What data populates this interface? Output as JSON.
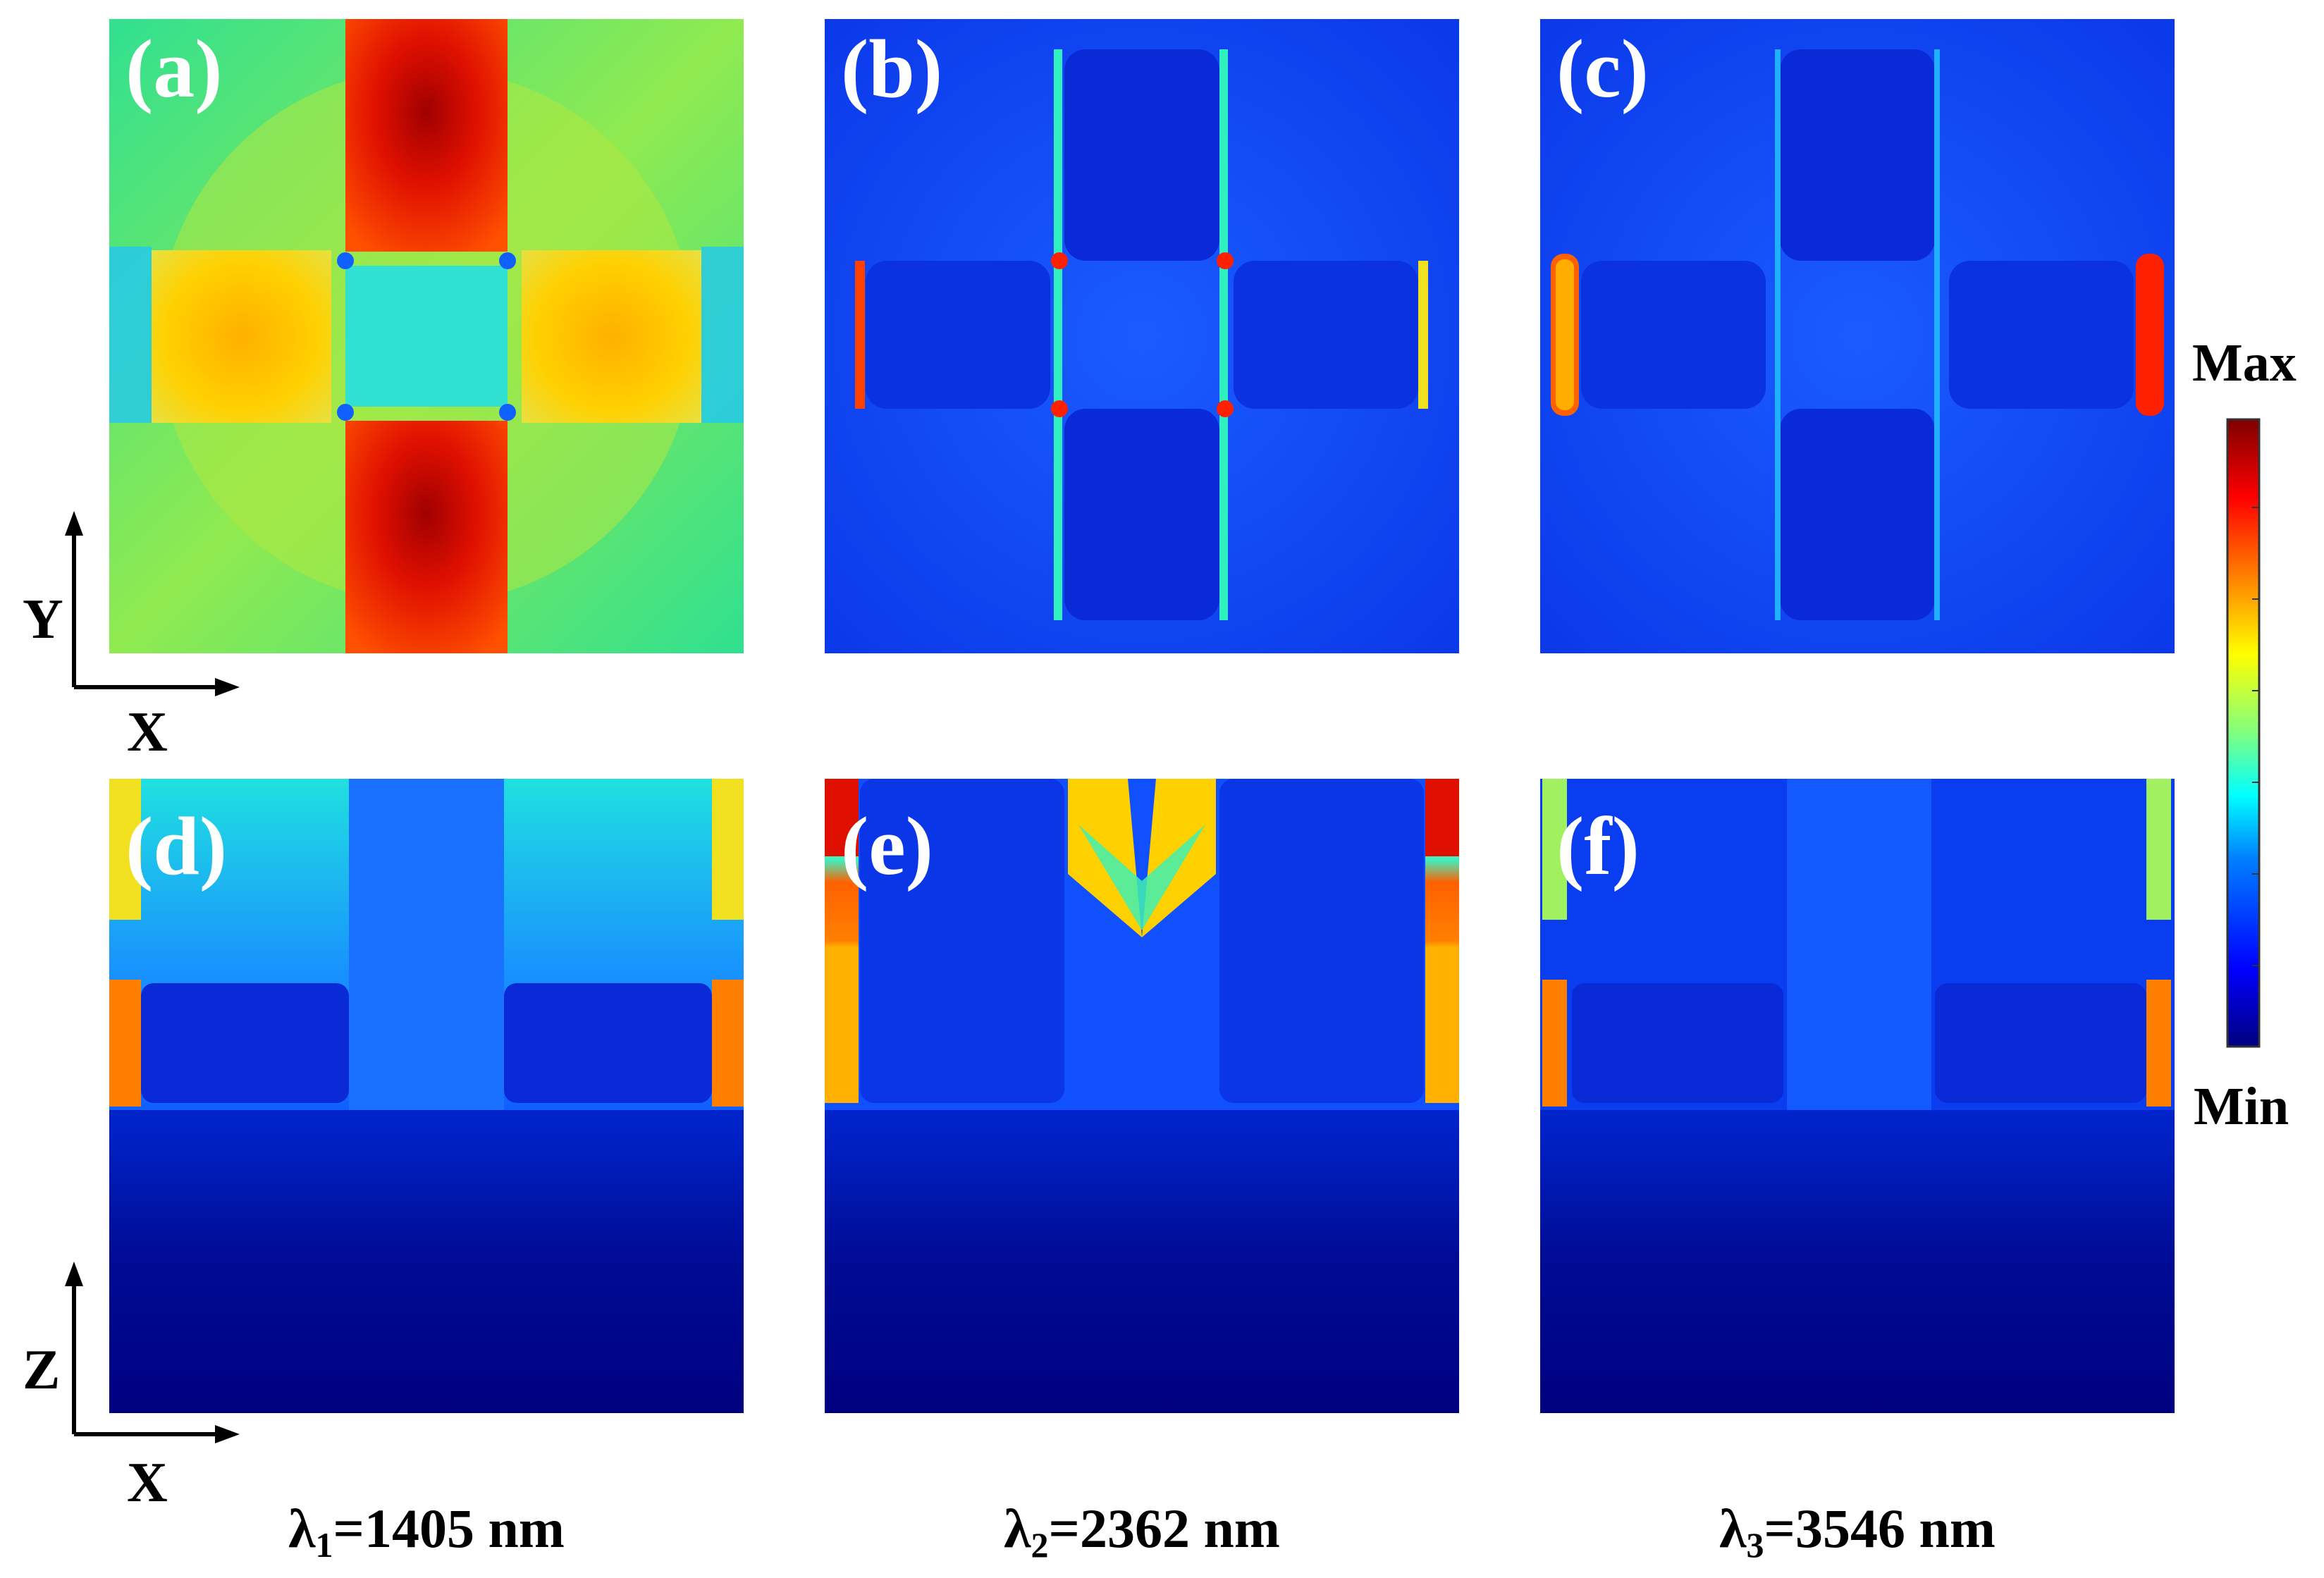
{
  "panels": {
    "a": {
      "label": "(a)"
    },
    "b": {
      "label": "(b)"
    },
    "c": {
      "label": "(c)"
    },
    "d": {
      "label": "(d)"
    },
    "e": {
      "label": "(e)"
    },
    "f": {
      "label": "(f)"
    }
  },
  "axes": {
    "top": {
      "vertical": "Y",
      "horizontal": "X"
    },
    "bottom": {
      "vertical": "Z",
      "horizontal": "X"
    }
  },
  "captions": [
    {
      "symbol": "λ",
      "sub": "1",
      "text": "=1405 nm"
    },
    {
      "symbol": "λ",
      "sub": "2",
      "text": "=2362 nm"
    },
    {
      "symbol": "λ",
      "sub": "3",
      "text": "=3546 nm"
    }
  ],
  "colorbar": {
    "max_label": "Max",
    "min_label": "Min",
    "stops": [
      "#00007f",
      "#0000ff",
      "#0080ff",
      "#00ffff",
      "#80ff80",
      "#ffff00",
      "#ff8000",
      "#ff0000",
      "#7f0000"
    ]
  },
  "palette": {
    "deep_blue": "#00007f",
    "blue": "#0a3cf0",
    "mid_blue": "#1550ff",
    "cyan": "#00e6e6",
    "green": "#40e080",
    "yellow": "#ffd000",
    "orange": "#ff8000",
    "red": "#ff1000",
    "dark_red": "#a00000"
  }
}
